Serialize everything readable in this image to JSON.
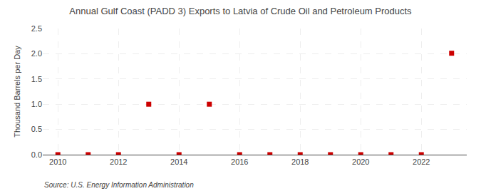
{
  "chart_data": {
    "type": "scatter",
    "title": "Annual Gulf Coast (PADD 3) Exports to Latvia of Crude Oil and Petroleum Products",
    "y_label": "Thousand Barrels per Day",
    "annotations": [
      "Source: U.S. Energy Information Administration"
    ],
    "x": [
      2010,
      2011,
      2012,
      2013,
      2014,
      2015,
      2016,
      2017,
      2018,
      2019,
      2020,
      2021,
      2022,
      2023
    ],
    "values": [
      0.0,
      0.0,
      0.0,
      1.0,
      0.0,
      1.0,
      0.0,
      0.0,
      0.0,
      0.0,
      0.0,
      0.0,
      0.0,
      2.01
    ],
    "color": "#cc0000",
    "marker": "square",
    "xlim": [
      2009.5,
      2023.5
    ],
    "xticks": [
      2010,
      2012,
      2014,
      2016,
      2018,
      2020,
      2022
    ],
    "ylim": [
      0,
      2.5
    ],
    "yticks": [
      {
        "value": 0,
        "label": "0.0"
      },
      0.5,
      {
        "value": 1,
        "label": "1.0"
      },
      1.5,
      {
        "value": 2,
        "label": "2.0"
      },
      2.5
    ],
    "grid": true
  }
}
